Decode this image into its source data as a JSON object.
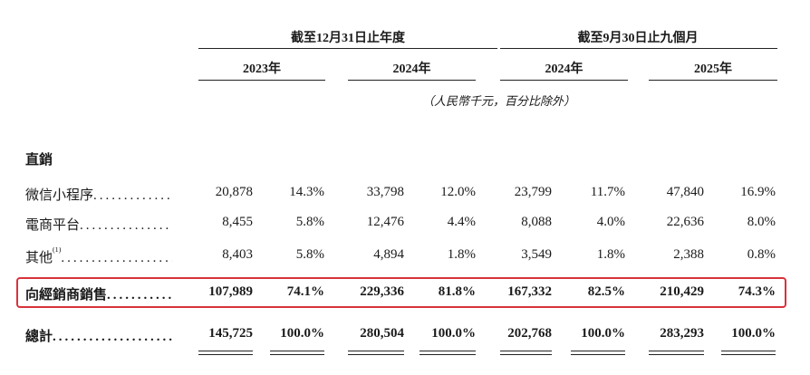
{
  "header": {
    "groups": [
      {
        "label": "截至12月31日止年度",
        "years": [
          "2023年",
          "2024年"
        ]
      },
      {
        "label": "截至9月30日止九個月",
        "years": [
          "2024年",
          "2025年"
        ]
      }
    ],
    "unit_note": "（人民幣千元，百分比除外）"
  },
  "section_title": "直銷",
  "rows": [
    {
      "label": "微信小程序",
      "sup": "",
      "values": [
        "20,878",
        "14.3%",
        "33,798",
        "12.0%",
        "23,799",
        "11.7%",
        "47,840",
        "16.9%"
      ]
    },
    {
      "label": "電商平台",
      "sup": "",
      "values": [
        "8,455",
        "5.8%",
        "12,476",
        "4.4%",
        "8,088",
        "4.0%",
        "22,636",
        "8.0%"
      ]
    },
    {
      "label": "其他",
      "sup": "(1)",
      "values": [
        "8,403",
        "5.8%",
        "4,894",
        "1.8%",
        "3,549",
        "1.8%",
        "2,388",
        "0.8%"
      ]
    },
    {
      "label": "向經銷商銷售",
      "sup": "",
      "values": [
        "107,989",
        "74.1%",
        "229,336",
        "81.8%",
        "167,332",
        "82.5%",
        "210,429",
        "74.3%"
      ]
    },
    {
      "label": "總計",
      "sup": "",
      "values": [
        "145,725",
        "100.0%",
        "280,504",
        "100.0%",
        "202,768",
        "100.0%",
        "283,293",
        "100.0%"
      ]
    }
  ]
}
